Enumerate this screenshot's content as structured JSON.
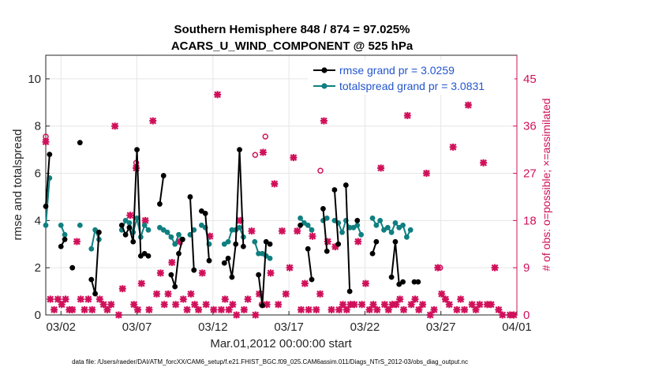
{
  "chart_data": {
    "type": "line",
    "title_line1": "Southern Hemisphere 848 / 874 = 97.025%",
    "title_line2": "ACARS_U_WIND_COMPONENT @ 525 hPa",
    "xlabel": "Mar.01,2012 00:00:00 start",
    "ylabel": "rmse and totalspread",
    "ylabel_right": "# of obs: o=possible; ×=assimilated",
    "footnote": "data file: /Users/raeder/DAI/ATM_forcXX/CAM6_setup/f.e21.FHIST_BGC.f09_025.CAM6assim.011/Diags_NTrS_2012-03/obs_diag_output.nc",
    "xlim": [
      0,
      31
    ],
    "ylim": [
      0,
      11
    ],
    "ylim_right": [
      0,
      49.5
    ],
    "x_ticks": [
      {
        "value": 1,
        "label": "03/02"
      },
      {
        "value": 6,
        "label": "03/07"
      },
      {
        "value": 11,
        "label": "03/12"
      },
      {
        "value": 16,
        "label": "03/17"
      },
      {
        "value": 21,
        "label": "03/22"
      },
      {
        "value": 26,
        "label": "03/27"
      },
      {
        "value": 31,
        "label": "04/01"
      }
    ],
    "y_ticks": [
      0,
      2,
      4,
      6,
      8,
      10
    ],
    "y_ticks_right": [
      0,
      9,
      18,
      27,
      36,
      45
    ],
    "colors": {
      "rmse": "#000000",
      "spread": "#0f7f80",
      "obs": "#d0105a",
      "legend_text": "#2255cc",
      "grid": "#e6e6e6"
    },
    "series": [
      {
        "name": "rmse grand pr = 3.0259",
        "values": [
          4.6,
          6.8,
          null,
          null,
          2.9,
          3.2,
          null,
          2.0,
          null,
          7.3,
          null,
          null,
          1.5,
          0.9,
          3.5,
          null,
          null,
          null,
          null,
          null,
          3.8,
          3.4,
          3.7,
          3.1,
          7.0,
          2.5,
          2.6,
          2.5,
          null,
          null,
          4.7,
          5.9,
          null,
          1.7,
          1.2,
          2.6,
          3.2,
          null,
          5.0,
          1.9,
          null,
          4.4,
          4.3,
          2.3,
          null,
          null,
          null,
          2.2,
          2.4,
          1.6,
          3.0,
          7.0,
          2.9,
          null,
          null,
          null,
          1.7,
          0.4,
          3.1,
          3.0,
          null,
          null,
          null,
          null,
          null,
          null,
          null,
          3.8,
          null,
          2.8,
          1.5,
          null,
          null,
          4.5,
          2.7,
          null,
          5.3,
          3.0,
          null,
          5.5,
          1.0,
          null,
          4.0,
          null,
          null,
          null,
          2.6,
          3.1,
          null,
          null,
          null,
          1.6,
          3.1,
          1.3,
          1.4,
          null,
          null,
          1.4,
          1.4,
          null,
          null,
          null,
          null,
          null,
          null,
          null,
          null,
          null,
          null,
          null,
          null,
          null,
          null,
          null,
          null,
          null,
          null,
          null,
          null,
          null,
          null,
          null,
          null,
          null,
          null
        ]
      },
      {
        "name": "totalspread grand pr = 3.0831",
        "values": [
          3.8,
          5.8,
          null,
          null,
          3.8,
          3.4,
          null,
          null,
          null,
          3.8,
          null,
          null,
          2.8,
          3.6,
          3.2,
          null,
          null,
          null,
          null,
          null,
          3.6,
          4.0,
          3.9,
          3.5,
          4.1,
          3.3,
          3.8,
          3.6,
          null,
          null,
          3.7,
          3.6,
          3.5,
          3.3,
          3.0,
          3.4,
          3.2,
          null,
          3.4,
          3.6,
          null,
          3.8,
          3.7,
          3.0,
          null,
          null,
          null,
          3.0,
          3.1,
          3.6,
          3.6,
          3.7,
          3.3,
          null,
          null,
          3.1,
          2.6,
          2.6,
          2.5,
          2.4,
          null,
          null,
          null,
          null,
          null,
          null,
          null,
          4.1,
          3.9,
          3.8,
          3.6,
          null,
          null,
          4.0,
          4.1,
          null,
          4.0,
          3.9,
          3.5,
          4.0,
          3.7,
          3.7,
          3.8,
          3.4,
          null,
          null,
          4.1,
          3.8,
          4.0,
          3.6,
          3.7,
          3.5,
          3.9,
          3.7,
          3.8,
          3.3,
          3.6,
          null,
          null,
          null,
          null,
          null,
          null,
          null,
          null,
          null,
          null,
          null,
          null,
          null,
          null,
          null,
          null,
          null,
          null,
          null,
          null,
          null,
          null,
          null,
          null,
          null,
          null,
          null,
          null
        ]
      },
      {
        "name": "possible obs",
        "axis": "right",
        "marker": "o",
        "values": [
          34,
          null,
          null,
          null,
          null,
          null,
          null,
          null,
          null,
          null,
          null,
          null,
          null,
          null,
          null,
          null,
          null,
          null,
          null,
          null,
          null,
          29,
          null,
          null,
          null,
          null,
          null,
          null,
          null,
          null,
          null,
          null,
          null,
          null,
          null,
          null,
          null,
          null,
          null,
          null,
          null,
          null,
          null,
          null,
          null,
          null,
          null,
          null,
          null,
          null,
          null,
          null,
          null,
          null,
          null,
          null,
          null,
          null,
          null,
          null,
          null,
          null,
          null,
          null,
          null,
          null,
          null,
          null,
          null,
          null,
          null,
          null,
          null,
          null,
          null,
          null,
          null,
          null,
          null,
          null,
          null,
          null,
          null,
          null,
          null,
          null,
          null,
          null,
          null,
          null,
          null,
          null,
          null,
          null,
          null,
          null,
          null,
          null,
          null,
          null,
          null,
          null,
          null,
          null,
          null,
          null,
          null,
          null,
          null,
          null,
          null,
          null,
          null,
          null,
          null,
          null,
          null,
          null,
          null,
          null,
          null,
          null,
          null,
          null,
          null
        ],
        "points": [
          {
            "x": 0.0,
            "v": 34
          },
          {
            "x": 5.95,
            "v": 29
          },
          {
            "x": 13.78,
            "v": 30.5
          },
          {
            "x": 14.45,
            "v": 34
          },
          {
            "x": 14.2,
            "v": 2
          },
          {
            "x": 18.07,
            "v": 27.5
          },
          {
            "x": 25.95,
            "v": 9
          }
        ]
      },
      {
        "name": "assimilated obs",
        "axis": "right",
        "marker": "x",
        "points": [
          {
            "x": 0.0,
            "v": 33
          },
          {
            "x": 0.3,
            "v": 3
          },
          {
            "x": 0.55,
            "v": 1
          },
          {
            "x": 0.8,
            "v": 3
          },
          {
            "x": 1.05,
            "v": 2
          },
          {
            "x": 1.3,
            "v": 3
          },
          {
            "x": 1.55,
            "v": 1
          },
          {
            "x": 1.75,
            "v": 1
          },
          {
            "x": 2.05,
            "v": 14
          },
          {
            "x": 2.3,
            "v": 3
          },
          {
            "x": 2.55,
            "v": 1
          },
          {
            "x": 2.8,
            "v": 3
          },
          {
            "x": 3.05,
            "v": 1
          },
          {
            "x": 3.55,
            "v": 3
          },
          {
            "x": 3.8,
            "v": 2
          },
          {
            "x": 4.05,
            "v": 1
          },
          {
            "x": 4.3,
            "v": 2
          },
          {
            "x": 4.55,
            "v": 36
          },
          {
            "x": 4.8,
            "v": 0
          },
          {
            "x": 5.05,
            "v": 5
          },
          {
            "x": 5.55,
            "v": 19
          },
          {
            "x": 5.8,
            "v": 2
          },
          {
            "x": 6.05,
            "v": 1
          },
          {
            "x": 5.95,
            "v": 28
          },
          {
            "x": 6.3,
            "v": 6
          },
          {
            "x": 6.55,
            "v": 18
          },
          {
            "x": 6.8,
            "v": 1
          },
          {
            "x": 7.05,
            "v": 37
          },
          {
            "x": 7.3,
            "v": 4
          },
          {
            "x": 7.55,
            "v": 8
          },
          {
            "x": 7.8,
            "v": 2
          },
          {
            "x": 8.05,
            "v": 4
          },
          {
            "x": 8.3,
            "v": 10
          },
          {
            "x": 8.55,
            "v": 2
          },
          {
            "x": 8.8,
            "v": 14
          },
          {
            "x": 9.05,
            "v": 3
          },
          {
            "x": 9.3,
            "v": 1
          },
          {
            "x": 9.55,
            "v": 4
          },
          {
            "x": 9.8,
            "v": 2
          },
          {
            "x": 10.05,
            "v": 1
          },
          {
            "x": 10.3,
            "v": 8
          },
          {
            "x": 10.55,
            "v": 2
          },
          {
            "x": 10.8,
            "v": 15
          },
          {
            "x": 11.05,
            "v": 1
          },
          {
            "x": 11.3,
            "v": 42
          },
          {
            "x": 11.55,
            "v": 1
          },
          {
            "x": 11.8,
            "v": 3
          },
          {
            "x": 12.05,
            "v": 1
          },
          {
            "x": 12.3,
            "v": 2
          },
          {
            "x": 12.55,
            "v": 0
          },
          {
            "x": 12.8,
            "v": 18
          },
          {
            "x": 13.05,
            "v": 1
          },
          {
            "x": 13.3,
            "v": 3
          },
          {
            "x": 13.55,
            "v": 16
          },
          {
            "x": 13.8,
            "v": 0
          },
          {
            "x": 14.05,
            "v": 4
          },
          {
            "x": 14.3,
            "v": 31
          },
          {
            "x": 14.55,
            "v": 2
          },
          {
            "x": 14.8,
            "v": 8
          },
          {
            "x": 15.05,
            "v": 25
          },
          {
            "x": 15.3,
            "v": 2
          },
          {
            "x": 15.55,
            "v": 16
          },
          {
            "x": 15.8,
            "v": 4
          },
          {
            "x": 16.05,
            "v": 9
          },
          {
            "x": 16.3,
            "v": 30
          },
          {
            "x": 16.55,
            "v": 16
          },
          {
            "x": 16.8,
            "v": 1
          },
          {
            "x": 17.05,
            "v": 6
          },
          {
            "x": 17.3,
            "v": 1
          },
          {
            "x": 17.55,
            "v": 15
          },
          {
            "x": 17.8,
            "v": 1
          },
          {
            "x": 18.05,
            "v": 4
          },
          {
            "x": 18.3,
            "v": 37
          },
          {
            "x": 18.55,
            "v": 14
          },
          {
            "x": 18.8,
            "v": 1
          },
          {
            "x": 19.05,
            "v": 13
          },
          {
            "x": 19.3,
            "v": 1
          },
          {
            "x": 19.55,
            "v": 2
          },
          {
            "x": 19.8,
            "v": 1
          },
          {
            "x": 20.05,
            "v": 2
          },
          {
            "x": 20.3,
            "v": 2
          },
          {
            "x": 20.55,
            "v": 14
          },
          {
            "x": 20.8,
            "v": 2
          },
          {
            "x": 21.05,
            "v": 6
          },
          {
            "x": 21.3,
            "v": 1
          },
          {
            "x": 21.55,
            "v": 2
          },
          {
            "x": 21.8,
            "v": 1
          },
          {
            "x": 22.05,
            "v": 28
          },
          {
            "x": 22.3,
            "v": 2
          },
          {
            "x": 22.55,
            "v": 1
          },
          {
            "x": 22.8,
            "v": 2
          },
          {
            "x": 23.05,
            "v": 2
          },
          {
            "x": 23.3,
            "v": 3
          },
          {
            "x": 23.55,
            "v": 1
          },
          {
            "x": 23.8,
            "v": 38
          },
          {
            "x": 24.05,
            "v": 2
          },
          {
            "x": 24.3,
            "v": 3
          },
          {
            "x": 24.55,
            "v": 1
          },
          {
            "x": 24.8,
            "v": 2
          },
          {
            "x": 25.05,
            "v": 27
          },
          {
            "x": 25.3,
            "v": 0
          },
          {
            "x": 25.55,
            "v": 1
          },
          {
            "x": 25.8,
            "v": 9
          },
          {
            "x": 26.05,
            "v": 4
          },
          {
            "x": 26.3,
            "v": 3
          },
          {
            "x": 26.55,
            "v": 2
          },
          {
            "x": 26.8,
            "v": 32
          },
          {
            "x": 27.05,
            "v": 1
          },
          {
            "x": 27.3,
            "v": 3
          },
          {
            "x": 27.55,
            "v": 1
          },
          {
            "x": 27.8,
            "v": 40
          },
          {
            "x": 28.05,
            "v": 2
          },
          {
            "x": 28.3,
            "v": 1
          },
          {
            "x": 28.55,
            "v": 2
          },
          {
            "x": 28.8,
            "v": 29
          },
          {
            "x": 29.05,
            "v": 2
          },
          {
            "x": 29.3,
            "v": 2
          },
          {
            "x": 29.55,
            "v": 9
          },
          {
            "x": 29.8,
            "v": 1
          },
          {
            "x": 30.05,
            "v": 0
          },
          {
            "x": 30.55,
            "v": 0
          },
          {
            "x": 30.8,
            "v": 0
          }
        ]
      }
    ],
    "legend": [
      {
        "label": "rmse grand pr = 3.0259",
        "series": "rmse"
      },
      {
        "label": "totalspread grand pr = 3.0831",
        "series": "spread"
      }
    ],
    "legend_position": "top-right"
  }
}
